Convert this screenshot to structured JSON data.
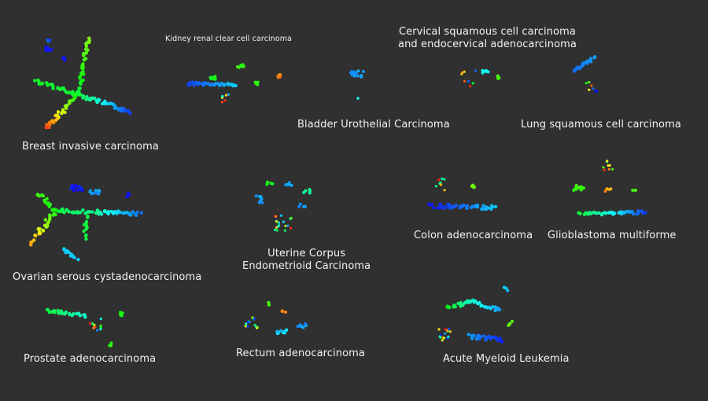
{
  "chart_data": {
    "type": "scatter",
    "panels": [
      {
        "id": "breast",
        "label": [
          "Breast invasive carcinoma"
        ]
      },
      {
        "id": "kidney",
        "label": [
          "Kidney renal clear cell carcinoma"
        ]
      },
      {
        "id": "cervical",
        "label": [
          "Cervical squamous cell carcinoma",
          "and endocervical adenocarcinoma"
        ]
      },
      {
        "id": "bladder",
        "label": [
          "Bladder Urothelial Carcinoma"
        ]
      },
      {
        "id": "lung",
        "label": [
          "Lung squamous cell carcinoma"
        ]
      },
      {
        "id": "ovarian",
        "label": [
          "Ovarian serous cystadenocarcinoma"
        ]
      },
      {
        "id": "uterine",
        "label": [
          "Uterine Corpus",
          "Endometrioid Carcinoma"
        ]
      },
      {
        "id": "colon",
        "label": [
          "Colon adenocarcinoma"
        ]
      },
      {
        "id": "glio",
        "label": [
          "Glioblastoma multiforme"
        ]
      },
      {
        "id": "prostate",
        "label": [
          "Prostate adenocarcinoma"
        ]
      },
      {
        "id": "rectum",
        "label": [
          "Rectum adenocarcinoma"
        ]
      },
      {
        "id": "aml",
        "label": [
          "Acute Myeloid Leukemia"
        ]
      }
    ]
  }
}
